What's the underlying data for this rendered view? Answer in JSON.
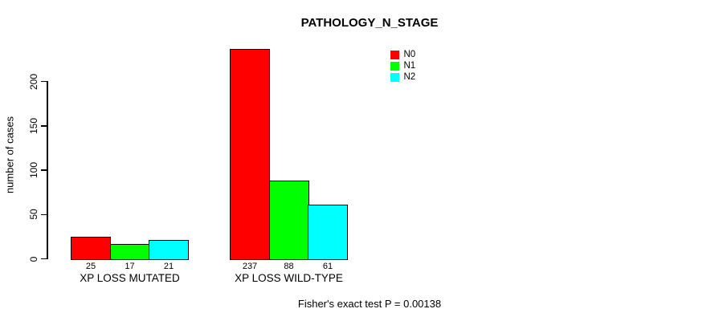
{
  "chart_data": {
    "type": "bar",
    "title": "PATHOLOGY_N_STAGE",
    "xlabel": "",
    "ylabel": "number of cases",
    "categories": [
      "XP LOSS MUTATED",
      "XP LOSS WILD-TYPE"
    ],
    "series": [
      {
        "name": "N0",
        "color": "#FF0000",
        "values": [
          25,
          237
        ]
      },
      {
        "name": "N1",
        "color": "#00FF00",
        "values": [
          17,
          88
        ]
      },
      {
        "name": "N2",
        "color": "#00FFFF",
        "values": [
          21,
          61
        ]
      }
    ],
    "bar_value_labels": [
      [
        "25",
        "17",
        "21"
      ],
      [
        "237",
        "88",
        "61"
      ]
    ],
    "yticks": [
      "0",
      "50",
      "100",
      "150",
      "200"
    ],
    "ylim": [
      0,
      240
    ],
    "grid": false,
    "legend": {
      "position": "top-right",
      "entries": [
        "N0",
        "N1",
        "N2"
      ]
    },
    "annotation": "Fisher's exact test P = 0.00138"
  }
}
